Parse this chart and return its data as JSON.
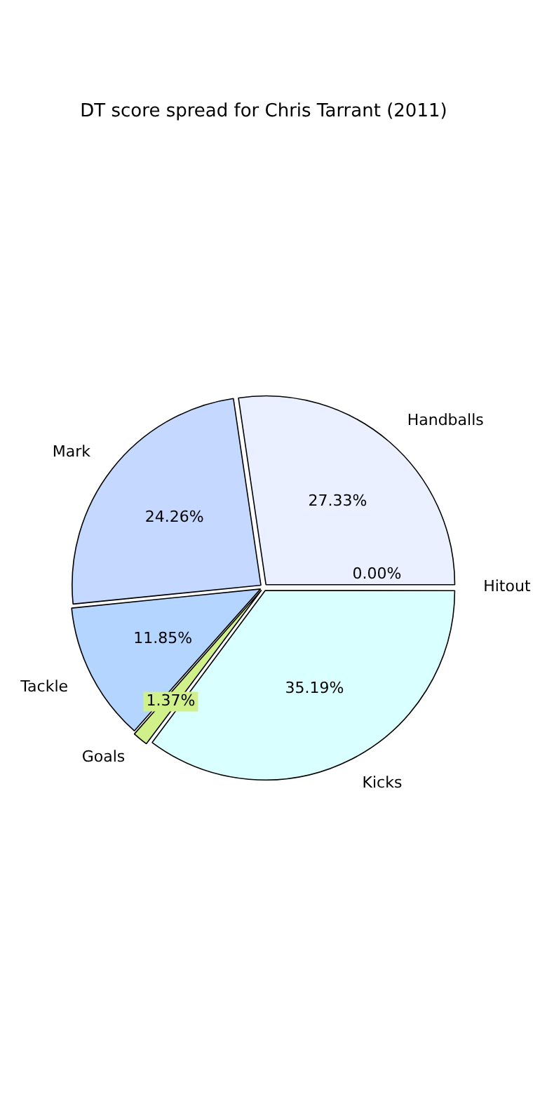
{
  "chart_data": {
    "type": "pie",
    "title": "DT score spread for Chris Tarrant (2011)",
    "categories": [
      "Handballs",
      "Mark",
      "Tackle",
      "Goals",
      "Kicks",
      "Hitout"
    ],
    "values": [
      27.33,
      24.26,
      11.85,
      1.37,
      35.19,
      0.0
    ],
    "value_labels": [
      "27.33%",
      "24.26%",
      "11.85%",
      "1.37%",
      "35.19%",
      "0.00%"
    ],
    "colors": [
      "#eaf0ff",
      "#c5d8ff",
      "#b3d5ff",
      "#d0f08a",
      "#d9ffff",
      "#f2f6ff"
    ],
    "legend": false
  }
}
